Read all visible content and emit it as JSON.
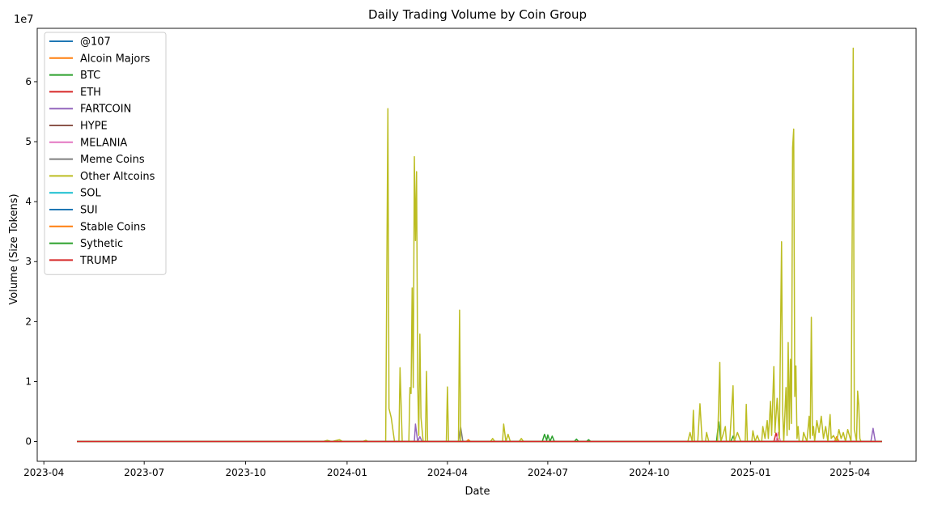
{
  "chart_data": {
    "type": "line",
    "title": "Daily Trading Volume by Coin Group",
    "xlabel": "Date",
    "ylabel": "Volume (Size Tokens)",
    "y_multiplier_label": "1e7",
    "xlim": [
      "2023-03-26",
      "2025-05-31"
    ],
    "ylim": [
      -3300000,
      68900000
    ],
    "x_ticks": [
      "2023-04",
      "2023-07",
      "2023-10",
      "2024-01",
      "2024-04",
      "2024-07",
      "2024-10",
      "2025-01",
      "2025-04"
    ],
    "x_tick_dates": [
      "2023-04-01",
      "2023-07-01",
      "2023-10-01",
      "2024-01-01",
      "2024-04-01",
      "2024-07-01",
      "2024-10-01",
      "2025-01-01",
      "2025-04-01"
    ],
    "y_ticks": [
      0,
      10000000,
      20000000,
      30000000,
      40000000,
      50000000,
      60000000
    ],
    "y_tick_labels": [
      "0",
      "1",
      "2",
      "3",
      "4",
      "5",
      "6"
    ],
    "legend_position": "top-left",
    "series": [
      {
        "name": "@107",
        "color": "#1f77b4",
        "points": [
          [
            "2023-05-01",
            0
          ],
          [
            "2025-04-30",
            0
          ]
        ]
      },
      {
        "name": "Alcoin Majors",
        "color": "#ff7f0e",
        "points": [
          [
            "2023-05-01",
            0
          ],
          [
            "2023-12-20",
            0
          ],
          [
            "2023-12-22",
            150000
          ],
          [
            "2023-12-24",
            0
          ],
          [
            "2024-04-18",
            0
          ],
          [
            "2024-04-20",
            300000
          ],
          [
            "2024-04-22",
            0
          ],
          [
            "2025-03-18",
            0
          ],
          [
            "2025-03-20",
            800000
          ],
          [
            "2025-03-22",
            0
          ],
          [
            "2025-04-30",
            0
          ]
        ]
      },
      {
        "name": "BTC",
        "color": "#2ca02c",
        "points": [
          [
            "2023-05-01",
            0
          ],
          [
            "2024-06-26",
            0
          ],
          [
            "2024-06-28",
            1200000
          ],
          [
            "2024-06-30",
            200000
          ],
          [
            "2024-07-01",
            1100000
          ],
          [
            "2024-07-03",
            0
          ],
          [
            "2024-07-05",
            900000
          ],
          [
            "2024-07-07",
            0
          ],
          [
            "2024-07-25",
            0
          ],
          [
            "2024-07-27",
            400000
          ],
          [
            "2024-07-29",
            0
          ],
          [
            "2024-08-05",
            0
          ],
          [
            "2024-08-07",
            300000
          ],
          [
            "2024-08-09",
            0
          ],
          [
            "2024-12-01",
            0
          ],
          [
            "2024-12-03",
            3300000
          ],
          [
            "2024-12-05",
            0
          ],
          [
            "2024-12-14",
            0
          ],
          [
            "2024-12-16",
            900000
          ],
          [
            "2024-12-18",
            0
          ],
          [
            "2025-04-30",
            0
          ]
        ]
      },
      {
        "name": "ETH",
        "color": "#d62728",
        "points": [
          [
            "2023-05-01",
            0
          ],
          [
            "2025-01-22",
            0
          ],
          [
            "2025-01-24",
            1400000
          ],
          [
            "2025-01-26",
            0
          ],
          [
            "2025-04-30",
            0
          ]
        ]
      },
      {
        "name": "FARTCOIN",
        "color": "#9467bd",
        "points": [
          [
            "2023-05-01",
            0
          ],
          [
            "2024-03-02",
            0
          ],
          [
            "2024-03-03",
            2900000
          ],
          [
            "2024-03-05",
            0
          ],
          [
            "2024-03-07",
            800000
          ],
          [
            "2024-03-09",
            0
          ],
          [
            "2025-04-20",
            0
          ],
          [
            "2025-04-22",
            2200000
          ],
          [
            "2025-04-24",
            0
          ],
          [
            "2025-04-30",
            0
          ]
        ]
      },
      {
        "name": "HYPE",
        "color": "#8c564b",
        "points": [
          [
            "2023-05-01",
            0
          ],
          [
            "2025-04-30",
            0
          ]
        ]
      },
      {
        "name": "MELANIA",
        "color": "#e377c2",
        "points": [
          [
            "2023-05-01",
            0
          ],
          [
            "2025-01-24",
            0
          ],
          [
            "2025-01-26",
            1500000
          ],
          [
            "2025-01-28",
            0
          ],
          [
            "2025-04-30",
            0
          ]
        ]
      },
      {
        "name": "Meme Coins",
        "color": "#7f7f7f",
        "points": [
          [
            "2023-05-01",
            0
          ],
          [
            "2024-04-11",
            0
          ],
          [
            "2024-04-13",
            2400000
          ],
          [
            "2024-04-15",
            0
          ],
          [
            "2025-04-30",
            0
          ]
        ]
      },
      {
        "name": "Other Altcoins",
        "color": "#bcbd22",
        "points": [
          [
            "2023-05-01",
            0
          ],
          [
            "2023-12-10",
            0
          ],
          [
            "2023-12-14",
            200000
          ],
          [
            "2023-12-18",
            0
          ],
          [
            "2023-12-25",
            300000
          ],
          [
            "2023-12-28",
            0
          ],
          [
            "2024-01-15",
            0
          ],
          [
            "2024-01-18",
            200000
          ],
          [
            "2024-01-20",
            0
          ],
          [
            "2024-02-05",
            0
          ],
          [
            "2024-02-07",
            55500000
          ],
          [
            "2024-02-08",
            5500000
          ],
          [
            "2024-02-10",
            4000000
          ],
          [
            "2024-02-13",
            0
          ],
          [
            "2024-02-17",
            0
          ],
          [
            "2024-02-18",
            12300000
          ],
          [
            "2024-02-20",
            0
          ],
          [
            "2024-02-26",
            0
          ],
          [
            "2024-02-27",
            9000000
          ],
          [
            "2024-02-28",
            8000000
          ],
          [
            "2024-02-29",
            25600000
          ],
          [
            "2024-03-01",
            9000000
          ],
          [
            "2024-03-02",
            47500000
          ],
          [
            "2024-03-03",
            33500000
          ],
          [
            "2024-03-04",
            45000000
          ],
          [
            "2024-03-05",
            10000000
          ],
          [
            "2024-03-06",
            1000000
          ],
          [
            "2024-03-07",
            17900000
          ],
          [
            "2024-03-08",
            4000000
          ],
          [
            "2024-03-10",
            0
          ],
          [
            "2024-03-12",
            0
          ],
          [
            "2024-03-13",
            11700000
          ],
          [
            "2024-03-14",
            0
          ],
          [
            "2024-03-31",
            0
          ],
          [
            "2024-04-01",
            9100000
          ],
          [
            "2024-04-02",
            0
          ],
          [
            "2024-04-11",
            0
          ],
          [
            "2024-04-12",
            21900000
          ],
          [
            "2024-04-13",
            0
          ],
          [
            "2024-05-10",
            0
          ],
          [
            "2024-05-12",
            500000
          ],
          [
            "2024-05-14",
            0
          ],
          [
            "2024-05-21",
            0
          ],
          [
            "2024-05-22",
            2900000
          ],
          [
            "2024-05-24",
            0
          ],
          [
            "2024-05-26",
            1200000
          ],
          [
            "2024-05-28",
            0
          ],
          [
            "2024-06-05",
            0
          ],
          [
            "2024-06-07",
            500000
          ],
          [
            "2024-06-09",
            0
          ],
          [
            "2024-11-05",
            0
          ],
          [
            "2024-11-07",
            1500000
          ],
          [
            "2024-11-09",
            0
          ],
          [
            "2024-11-10",
            5200000
          ],
          [
            "2024-11-11",
            0
          ],
          [
            "2024-11-14",
            0
          ],
          [
            "2024-11-16",
            6300000
          ],
          [
            "2024-11-18",
            0
          ],
          [
            "2024-11-21",
            0
          ],
          [
            "2024-11-22",
            1500000
          ],
          [
            "2024-11-24",
            0
          ],
          [
            "2024-11-30",
            0
          ],
          [
            "2024-12-02",
            0
          ],
          [
            "2024-12-04",
            13200000
          ],
          [
            "2024-12-05",
            0
          ],
          [
            "2024-12-07",
            1200000
          ],
          [
            "2024-12-09",
            2500000
          ],
          [
            "2024-12-10",
            0
          ],
          [
            "2024-12-13",
            0
          ],
          [
            "2024-12-16",
            9300000
          ],
          [
            "2024-12-17",
            0
          ],
          [
            "2024-12-20",
            1500000
          ],
          [
            "2024-12-23",
            0
          ],
          [
            "2024-12-27",
            0
          ],
          [
            "2024-12-28",
            6200000
          ],
          [
            "2024-12-29",
            0
          ],
          [
            "2025-01-02",
            0
          ],
          [
            "2025-01-03",
            1800000
          ],
          [
            "2025-01-05",
            0
          ],
          [
            "2025-01-07",
            1000000
          ],
          [
            "2025-01-09",
            0
          ],
          [
            "2025-01-11",
            0
          ],
          [
            "2025-01-12",
            2500000
          ],
          [
            "2025-01-14",
            500000
          ],
          [
            "2025-01-16",
            3500000
          ],
          [
            "2025-01-17",
            500000
          ],
          [
            "2025-01-19",
            6700000
          ],
          [
            "2025-01-20",
            1000000
          ],
          [
            "2025-01-22",
            12500000
          ],
          [
            "2025-01-23",
            1500000
          ],
          [
            "2025-01-25",
            7200000
          ],
          [
            "2025-01-27",
            500000
          ],
          [
            "2025-01-29",
            33300000
          ],
          [
            "2025-01-30",
            5000000
          ],
          [
            "2025-01-31",
            0
          ],
          [
            "2025-02-02",
            9000000
          ],
          [
            "2025-02-03",
            1000000
          ],
          [
            "2025-02-04",
            16500000
          ],
          [
            "2025-02-05",
            2000000
          ],
          [
            "2025-02-06",
            13700000
          ],
          [
            "2025-02-07",
            3000000
          ],
          [
            "2025-02-08",
            49000000
          ],
          [
            "2025-02-09",
            52100000
          ],
          [
            "2025-02-10",
            7500000
          ],
          [
            "2025-02-11",
            12600000
          ],
          [
            "2025-02-12",
            500000
          ],
          [
            "2025-02-13",
            2500000
          ],
          [
            "2025-02-14",
            0
          ],
          [
            "2025-02-17",
            0
          ],
          [
            "2025-02-18",
            1500000
          ],
          [
            "2025-02-21",
            0
          ],
          [
            "2025-02-23",
            4200000
          ],
          [
            "2025-02-24",
            500000
          ],
          [
            "2025-02-25",
            20700000
          ],
          [
            "2025-02-26",
            1000000
          ],
          [
            "2025-02-27",
            2500000
          ],
          [
            "2025-02-28",
            0
          ],
          [
            "2025-03-02",
            3500000
          ],
          [
            "2025-03-04",
            1500000
          ],
          [
            "2025-03-06",
            4200000
          ],
          [
            "2025-03-08",
            500000
          ],
          [
            "2025-03-10",
            2500000
          ],
          [
            "2025-03-12",
            0
          ],
          [
            "2025-03-14",
            4500000
          ],
          [
            "2025-03-15",
            500000
          ],
          [
            "2025-03-17",
            1000000
          ],
          [
            "2025-03-20",
            0
          ],
          [
            "2025-03-22",
            2000000
          ],
          [
            "2025-03-24",
            500000
          ],
          [
            "2025-03-26",
            1500000
          ],
          [
            "2025-03-28",
            0
          ],
          [
            "2025-03-30",
            2000000
          ],
          [
            "2025-04-02",
            0
          ],
          [
            "2025-04-04",
            65600000
          ],
          [
            "2025-04-05",
            2000000
          ],
          [
            "2025-04-07",
            0
          ],
          [
            "2025-04-08",
            8400000
          ],
          [
            "2025-04-09",
            6000000
          ],
          [
            "2025-04-10",
            500000
          ],
          [
            "2025-04-11",
            0
          ],
          [
            "2025-04-30",
            0
          ]
        ]
      },
      {
        "name": "SOL",
        "color": "#17becf",
        "points": [
          [
            "2023-05-01",
            0
          ],
          [
            "2025-04-30",
            0
          ]
        ]
      },
      {
        "name": "SUI",
        "color": "#1f77b4",
        "points": [
          [
            "2023-05-01",
            0
          ],
          [
            "2025-04-30",
            0
          ]
        ]
      },
      {
        "name": "Stable Coins",
        "color": "#ff7f0e",
        "points": [
          [
            "2023-05-01",
            0
          ],
          [
            "2025-04-30",
            0
          ]
        ]
      },
      {
        "name": "Sythetic",
        "color": "#2ca02c",
        "points": [
          [
            "2023-05-01",
            0
          ],
          [
            "2025-04-30",
            0
          ]
        ]
      },
      {
        "name": "TRUMP",
        "color": "#d62728",
        "points": [
          [
            "2023-05-01",
            0
          ],
          [
            "2025-04-30",
            0
          ]
        ]
      }
    ]
  }
}
